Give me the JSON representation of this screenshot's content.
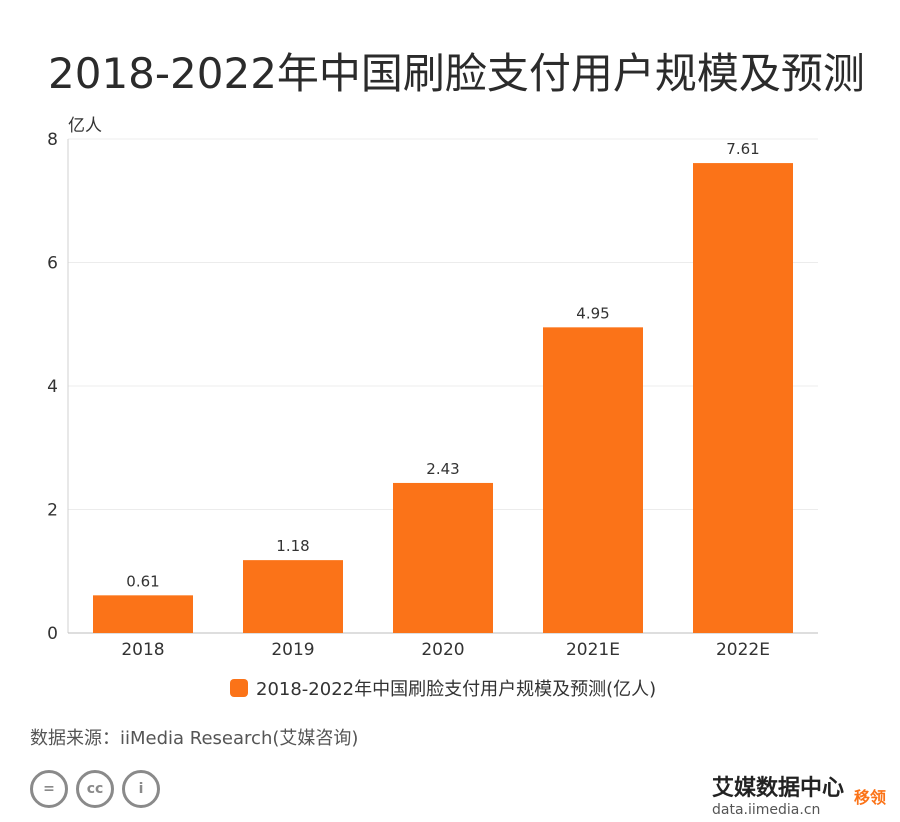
{
  "title": "2018-2022年中国刷脸支付用户规模及预测",
  "chart_data": {
    "type": "bar",
    "title": "2018-2022年中国刷脸支付用户规模及预测",
    "unit_label": "亿人",
    "categories": [
      "2018",
      "2019",
      "2020",
      "2021E",
      "2022E"
    ],
    "series": [
      {
        "name": "2018-2022年中国刷脸支付用户规模及预测(亿人)",
        "values": [
          0.61,
          1.18,
          2.43,
          4.95,
          7.61
        ],
        "value_labels": [
          "0.61",
          "1.18",
          "2.43",
          "4.95",
          "7.61"
        ]
      }
    ],
    "yticks": [
      "0",
      "2",
      "4",
      "6",
      "8"
    ],
    "ylim": [
      0,
      8
    ],
    "grid": true,
    "legend_position": "bottom",
    "bar_color": "#fb7318"
  },
  "legend": {
    "label": "2018-2022年中国刷脸支付用户规模及预测(亿人)"
  },
  "source": "数据来源：iiMedia Research(艾媒咨询)",
  "footer": {
    "cc_icons": [
      "equals-icon",
      "cc-icon",
      "person-icon"
    ],
    "cc_glyphs": [
      "=",
      "cc",
      "i"
    ],
    "brand_name": "艾媒数据中心",
    "brand_site": "data.iimedia.cn",
    "brand_tag": "移领"
  }
}
